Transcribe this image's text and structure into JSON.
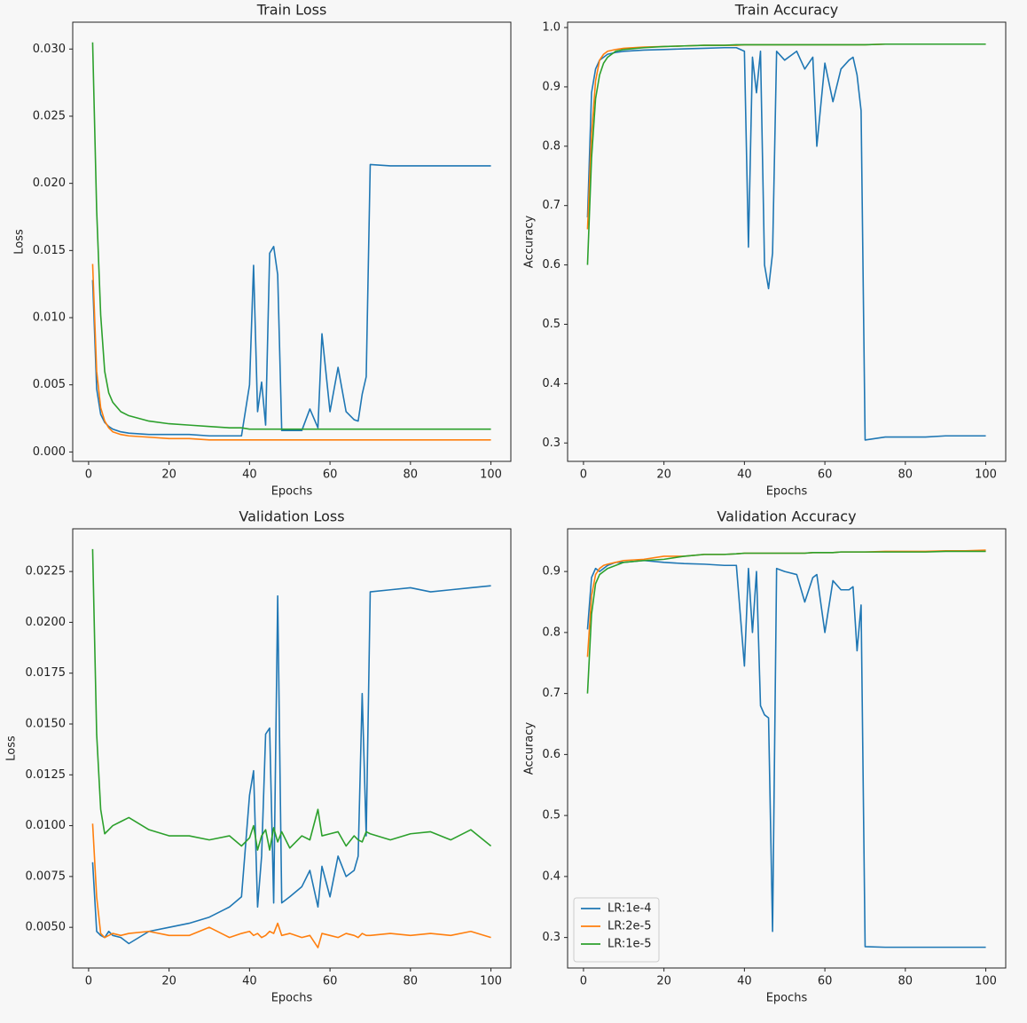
{
  "chart_data": [
    {
      "type": "line",
      "title": "Train Loss",
      "xlabel": "Epochs",
      "ylabel": "Loss",
      "x": [
        1,
        2,
        3,
        4,
        5,
        6,
        8,
        10,
        15,
        20,
        25,
        30,
        35,
        38,
        40,
        41,
        42,
        43,
        44,
        45,
        46,
        47,
        48,
        50,
        53,
        55,
        57,
        58,
        60,
        62,
        64,
        66,
        67,
        68,
        69,
        70,
        75,
        80,
        85,
        90,
        95,
        100
      ],
      "xlim": [
        -3.95,
        104.95
      ],
      "xticks": [
        0,
        20,
        40,
        60,
        80,
        100
      ],
      "ylim": [
        -0.0007,
        0.032
      ],
      "yticks": [
        {
          "value": 0,
          "label": "0.000"
        },
        {
          "value": 0.005,
          "label": "0.005"
        },
        {
          "value": 0.01,
          "label": "0.010"
        },
        {
          "value": 0.015,
          "label": "0.015"
        },
        {
          "value": 0.02,
          "label": "0.020"
        },
        {
          "value": 0.025,
          "label": "0.025"
        },
        {
          "value": 0.03,
          "label": "0.030"
        }
      ],
      "series": [
        {
          "color": "#1f77b4",
          "values": [
            0.0128,
            0.0047,
            0.0028,
            0.0022,
            0.0019,
            0.0017,
            0.0015,
            0.0014,
            0.0013,
            0.0013,
            0.0013,
            0.0012,
            0.0012,
            0.0012,
            0.005,
            0.0139,
            0.003,
            0.0052,
            0.002,
            0.0148,
            0.0153,
            0.0132,
            0.0016,
            0.0016,
            0.0016,
            0.0032,
            0.0018,
            0.0088,
            0.003,
            0.0063,
            0.003,
            0.0024,
            0.0023,
            0.0043,
            0.0056,
            0.0214,
            0.0213,
            0.0213,
            0.0213,
            0.0213,
            0.0213,
            0.0213
          ]
        },
        {
          "color": "#ff7f0e",
          "values": [
            0.014,
            0.006,
            0.0033,
            0.0023,
            0.0018,
            0.0015,
            0.0013,
            0.0012,
            0.0011,
            0.001,
            0.001,
            0.0009,
            0.0009,
            0.0009,
            0.0009,
            0.0009,
            0.0009,
            0.0009,
            0.0009,
            0.0009,
            0.0009,
            0.0009,
            0.0009,
            0.0009,
            0.0009,
            0.0009,
            0.0009,
            0.0009,
            0.0009,
            0.0009,
            0.0009,
            0.0009,
            0.0009,
            0.0009,
            0.0009,
            0.0009,
            0.0009,
            0.0009,
            0.0009,
            0.0009,
            0.0009,
            0.0009
          ]
        },
        {
          "color": "#2ca02c",
          "values": [
            0.0305,
            0.018,
            0.0102,
            0.006,
            0.0044,
            0.0037,
            0.003,
            0.0027,
            0.0023,
            0.0021,
            0.002,
            0.0019,
            0.0018,
            0.0018,
            0.0017,
            0.0017,
            0.0017,
            0.0017,
            0.0017,
            0.0017,
            0.0017,
            0.0017,
            0.0017,
            0.0017,
            0.0017,
            0.0017,
            0.0017,
            0.0017,
            0.0017,
            0.0017,
            0.0017,
            0.0017,
            0.0017,
            0.0017,
            0.0017,
            0.0017,
            0.0017,
            0.0017,
            0.0017,
            0.0017,
            0.0017,
            0.0017
          ]
        }
      ]
    },
    {
      "type": "line",
      "title": "Train Accuracy",
      "xlabel": "Epochs",
      "ylabel": "Accuracy",
      "x": [
        1,
        2,
        3,
        4,
        5,
        6,
        8,
        10,
        15,
        20,
        25,
        30,
        35,
        38,
        40,
        41,
        42,
        43,
        44,
        45,
        46,
        47,
        48,
        50,
        53,
        55,
        57,
        58,
        60,
        62,
        64,
        66,
        67,
        68,
        69,
        70,
        75,
        80,
        85,
        90,
        95,
        100
      ],
      "xlim": [
        -3.95,
        104.95
      ],
      "xticks": [
        0,
        20,
        40,
        60,
        80,
        100
      ],
      "ylim": [
        0.269,
        1.009
      ],
      "yticks": [
        0.3,
        0.4,
        0.5,
        0.6,
        0.7,
        0.8,
        0.9,
        {
          "value": 1,
          "label": "1.0"
        }
      ],
      "series": [
        {
          "color": "#1f77b4",
          "values": [
            0.68,
            0.89,
            0.93,
            0.945,
            0.95,
            0.955,
            0.958,
            0.96,
            0.962,
            0.963,
            0.964,
            0.965,
            0.966,
            0.966,
            0.96,
            0.63,
            0.95,
            0.89,
            0.96,
            0.6,
            0.56,
            0.62,
            0.96,
            0.945,
            0.96,
            0.93,
            0.95,
            0.8,
            0.94,
            0.875,
            0.93,
            0.945,
            0.95,
            0.92,
            0.86,
            0.305,
            0.31,
            0.31,
            0.31,
            0.312,
            0.312,
            0.312
          ]
        },
        {
          "color": "#ff7f0e",
          "values": [
            0.66,
            0.82,
            0.91,
            0.945,
            0.955,
            0.96,
            0.963,
            0.965,
            0.967,
            0.968,
            0.969,
            0.97,
            0.97,
            0.97,
            0.971,
            0.971,
            0.971,
            0.971,
            0.971,
            0.971,
            0.971,
            0.971,
            0.971,
            0.971,
            0.971,
            0.971,
            0.971,
            0.971,
            0.971,
            0.971,
            0.971,
            0.971,
            0.971,
            0.971,
            0.971,
            0.971,
            0.972,
            0.972,
            0.972,
            0.972,
            0.972,
            0.972
          ]
        },
        {
          "color": "#2ca02c",
          "values": [
            0.6,
            0.78,
            0.88,
            0.92,
            0.94,
            0.95,
            0.96,
            0.963,
            0.966,
            0.968,
            0.969,
            0.97,
            0.97,
            0.971,
            0.971,
            0.971,
            0.971,
            0.971,
            0.971,
            0.971,
            0.971,
            0.971,
            0.971,
            0.971,
            0.971,
            0.971,
            0.971,
            0.971,
            0.971,
            0.971,
            0.971,
            0.971,
            0.971,
            0.971,
            0.971,
            0.971,
            0.972,
            0.972,
            0.972,
            0.972,
            0.972,
            0.972
          ]
        }
      ]
    },
    {
      "type": "line",
      "title": "Validation Loss",
      "xlabel": "Epochs",
      "ylabel": "Loss",
      "x": [
        1,
        2,
        3,
        4,
        5,
        6,
        8,
        10,
        15,
        20,
        25,
        30,
        35,
        38,
        40,
        41,
        42,
        43,
        44,
        45,
        46,
        47,
        48,
        50,
        53,
        55,
        57,
        58,
        60,
        62,
        64,
        66,
        67,
        68,
        69,
        70,
        75,
        80,
        85,
        90,
        95,
        100
      ],
      "xlim": [
        -3.95,
        104.95
      ],
      "xticks": [
        0,
        20,
        40,
        60,
        80,
        100
      ],
      "ylim": [
        0.003,
        0.0246
      ],
      "yticks": [
        {
          "value": 0.005,
          "label": "0.0050"
        },
        {
          "value": 0.0075,
          "label": "0.0075"
        },
        {
          "value": 0.01,
          "label": "0.0100"
        },
        {
          "value": 0.0125,
          "label": "0.0125"
        },
        {
          "value": 0.015,
          "label": "0.0150"
        },
        {
          "value": 0.0175,
          "label": "0.0175"
        },
        {
          "value": 0.02,
          "label": "0.0200"
        },
        {
          "value": 0.0225,
          "label": "0.0225"
        }
      ],
      "series": [
        {
          "color": "#1f77b4",
          "values": [
            0.0082,
            0.0048,
            0.0046,
            0.0045,
            0.0048,
            0.0046,
            0.0045,
            0.0042,
            0.0048,
            0.005,
            0.0052,
            0.0055,
            0.006,
            0.0065,
            0.0115,
            0.0127,
            0.006,
            0.0085,
            0.0145,
            0.0148,
            0.0062,
            0.0213,
            0.0062,
            0.0065,
            0.007,
            0.0078,
            0.006,
            0.008,
            0.0065,
            0.0085,
            0.0075,
            0.0078,
            0.0085,
            0.0165,
            0.0095,
            0.0215,
            0.0216,
            0.0217,
            0.0215,
            0.0216,
            0.0217,
            0.0218
          ]
        },
        {
          "color": "#ff7f0e",
          "values": [
            0.0101,
            0.0065,
            0.0047,
            0.0045,
            0.0046,
            0.0047,
            0.0046,
            0.0047,
            0.0048,
            0.0046,
            0.0046,
            0.005,
            0.0045,
            0.0047,
            0.0048,
            0.0046,
            0.0047,
            0.0045,
            0.0046,
            0.0048,
            0.0047,
            0.0052,
            0.0046,
            0.0047,
            0.0045,
            0.0046,
            0.004,
            0.0047,
            0.0046,
            0.0045,
            0.0047,
            0.0046,
            0.0045,
            0.0047,
            0.0046,
            0.0046,
            0.0047,
            0.0046,
            0.0047,
            0.0046,
            0.0048,
            0.0045
          ]
        },
        {
          "color": "#2ca02c",
          "values": [
            0.0236,
            0.0145,
            0.0108,
            0.0096,
            0.0098,
            0.01,
            0.0102,
            0.0104,
            0.0098,
            0.0095,
            0.0095,
            0.0093,
            0.0095,
            0.009,
            0.0094,
            0.01,
            0.0088,
            0.0095,
            0.0098,
            0.0088,
            0.0099,
            0.0092,
            0.0097,
            0.0089,
            0.0095,
            0.0093,
            0.0108,
            0.0095,
            0.0096,
            0.0097,
            0.009,
            0.0095,
            0.0093,
            0.0092,
            0.0097,
            0.0096,
            0.0093,
            0.0096,
            0.0097,
            0.0093,
            0.0098,
            0.009
          ]
        }
      ]
    },
    {
      "type": "line",
      "title": "Validation Accuracy",
      "xlabel": "Epochs",
      "ylabel": "Accuracy",
      "x": [
        1,
        2,
        3,
        4,
        5,
        6,
        8,
        10,
        15,
        20,
        25,
        30,
        35,
        38,
        40,
        41,
        42,
        43,
        44,
        45,
        46,
        47,
        48,
        50,
        53,
        55,
        57,
        58,
        60,
        62,
        64,
        66,
        67,
        68,
        69,
        70,
        75,
        80,
        85,
        90,
        95,
        100
      ],
      "xlim": [
        -3.95,
        104.95
      ],
      "xticks": [
        0,
        20,
        40,
        60,
        80,
        100
      ],
      "ylim": [
        0.25,
        0.97
      ],
      "yticks": [
        0.3,
        0.4,
        0.5,
        0.6,
        0.7,
        0.8,
        0.9
      ],
      "legend": "lower left",
      "series": [
        {
          "name": "LR:1e-4",
          "color": "#1f77b4",
          "values": [
            0.805,
            0.89,
            0.905,
            0.9,
            0.905,
            0.91,
            0.915,
            0.915,
            0.918,
            0.915,
            0.913,
            0.912,
            0.91,
            0.91,
            0.745,
            0.905,
            0.8,
            0.9,
            0.68,
            0.665,
            0.66,
            0.31,
            0.905,
            0.9,
            0.895,
            0.85,
            0.89,
            0.895,
            0.8,
            0.885,
            0.87,
            0.87,
            0.875,
            0.77,
            0.845,
            0.285,
            0.284,
            0.284,
            0.284,
            0.284,
            0.284,
            0.284
          ]
        },
        {
          "name": "LR:2e-5",
          "color": "#ff7f0e",
          "values": [
            0.76,
            0.86,
            0.895,
            0.905,
            0.91,
            0.912,
            0.915,
            0.918,
            0.92,
            0.925,
            0.925,
            0.928,
            0.928,
            0.929,
            0.93,
            0.93,
            0.93,
            0.93,
            0.93,
            0.93,
            0.93,
            0.93,
            0.93,
            0.93,
            0.93,
            0.93,
            0.931,
            0.931,
            0.931,
            0.931,
            0.932,
            0.932,
            0.932,
            0.932,
            0.932,
            0.932,
            0.933,
            0.933,
            0.933,
            0.934,
            0.934,
            0.935
          ]
        },
        {
          "name": "LR:1e-5",
          "color": "#2ca02c",
          "values": [
            0.7,
            0.83,
            0.88,
            0.895,
            0.9,
            0.905,
            0.91,
            0.915,
            0.918,
            0.92,
            0.925,
            0.928,
            0.928,
            0.929,
            0.93,
            0.93,
            0.93,
            0.93,
            0.93,
            0.93,
            0.93,
            0.93,
            0.93,
            0.93,
            0.93,
            0.93,
            0.931,
            0.931,
            0.931,
            0.931,
            0.932,
            0.932,
            0.932,
            0.932,
            0.932,
            0.932,
            0.932,
            0.932,
            0.932,
            0.933,
            0.933,
            0.933
          ]
        }
      ]
    }
  ]
}
